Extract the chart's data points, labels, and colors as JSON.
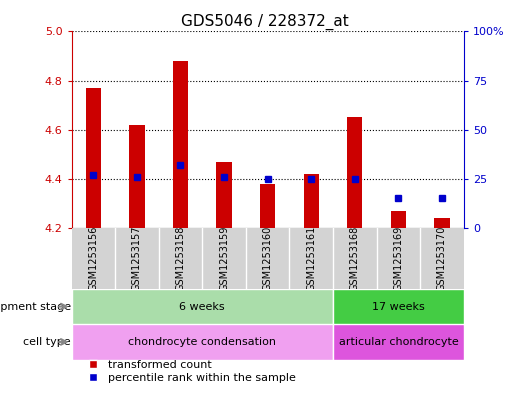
{
  "title": "GDS5046 / 228372_at",
  "samples": [
    "GSM1253156",
    "GSM1253157",
    "GSM1253158",
    "GSM1253159",
    "GSM1253160",
    "GSM1253161",
    "GSM1253168",
    "GSM1253169",
    "GSM1253170"
  ],
  "transformed_count": [
    4.77,
    4.62,
    4.88,
    4.47,
    4.38,
    4.42,
    4.65,
    4.27,
    4.24
  ],
  "percentile_rank": [
    27,
    26,
    32,
    26,
    25,
    25,
    25,
    15,
    15
  ],
  "ylim_left": [
    4.2,
    5.0
  ],
  "ylim_right": [
    0,
    100
  ],
  "yticks_left": [
    4.2,
    4.4,
    4.6,
    4.8,
    5.0
  ],
  "yticks_right": [
    0,
    25,
    50,
    75,
    100
  ],
  "bar_color": "#cc0000",
  "dot_color": "#0000cc",
  "bar_bottom": 4.2,
  "development_stages": [
    {
      "label": "6 weeks",
      "start": 0,
      "end": 6,
      "color": "#aaddaa"
    },
    {
      "label": "17 weeks",
      "start": 6,
      "end": 9,
      "color": "#44cc44"
    }
  ],
  "cell_types": [
    {
      "label": "chondrocyte condensation",
      "start": 0,
      "end": 6,
      "color": "#f0a0f0"
    },
    {
      "label": "articular chondrocyte",
      "start": 6,
      "end": 9,
      "color": "#dd55dd"
    }
  ],
  "legend_items": [
    {
      "label": "transformed count",
      "color": "#cc0000"
    },
    {
      "label": "percentile rank within the sample",
      "color": "#0000cc"
    }
  ],
  "dev_stage_label": "development stage",
  "cell_type_label": "cell type",
  "left_axis_color": "#cc0000",
  "right_axis_color": "#0000cc",
  "bar_width": 0.35,
  "sample_label_fontsize": 7,
  "annotation_fontsize": 8,
  "title_fontsize": 11
}
